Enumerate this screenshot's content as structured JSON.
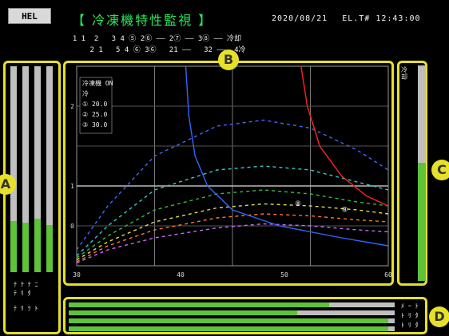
{
  "header": {
    "button_label": "HEL",
    "title": "【 冷凍機特性監視 】",
    "status_text": "2020/08/21 　EL.T# 12:43:00",
    "legend_line1_left": "  1 1  2   3 4 ⑤ 2⑥ —— 2⑦ —— 3⑧ —— 冷却",
    "legend_line1_right": "",
    "legend_line2": "      2 1   5 4 ⑥ 3⑥   21 ——   32 ——  4冷"
  },
  "legend_items": [
    {
      "label": "",
      "color": "#3355ff"
    },
    {
      "label": "",
      "color": "#22bb44"
    },
    {
      "label": "",
      "color": "#dd33ff"
    },
    {
      "label": "",
      "color": "#ff2222"
    },
    {
      "label": "",
      "color": "#eeee55"
    },
    {
      "label": "",
      "color": "#3355ff"
    }
  ],
  "markers": {
    "a": "A",
    "b": "B",
    "c": "C",
    "d": "D"
  },
  "chart_data": {
    "type": "line",
    "x_ticks": [
      "30",
      "",
      "",
      "40",
      "",
      "",
      "50",
      "",
      "",
      "60"
    ],
    "y_ticks": [
      "",
      "2",
      "",
      "1",
      "0",
      ""
    ],
    "inset": [
      "冷凍機 ON",
      "冷",
      "① 20.0",
      "② 25.0",
      "③ 30.0"
    ],
    "series": [
      {
        "color": "#4466ff",
        "points": [
          [
            0,
            0.92
          ],
          [
            0.1,
            0.7
          ],
          [
            0.25,
            0.45
          ],
          [
            0.45,
            0.3
          ],
          [
            0.6,
            0.27
          ],
          [
            0.75,
            0.31
          ],
          [
            0.9,
            0.42
          ],
          [
            1,
            0.52
          ]
        ]
      },
      {
        "color": "#33cccc",
        "points": [
          [
            0,
            0.95
          ],
          [
            0.1,
            0.8
          ],
          [
            0.25,
            0.62
          ],
          [
            0.45,
            0.52
          ],
          [
            0.6,
            0.5
          ],
          [
            0.75,
            0.52
          ],
          [
            0.9,
            0.58
          ],
          [
            1,
            0.62
          ]
        ]
      },
      {
        "color": "#33bb44",
        "points": [
          [
            0,
            0.96
          ],
          [
            0.1,
            0.85
          ],
          [
            0.25,
            0.72
          ],
          [
            0.45,
            0.64
          ],
          [
            0.6,
            0.62
          ],
          [
            0.75,
            0.64
          ],
          [
            0.9,
            0.68
          ],
          [
            1,
            0.7
          ]
        ]
      },
      {
        "color": "#dddd55",
        "points": [
          [
            0,
            0.97
          ],
          [
            0.1,
            0.88
          ],
          [
            0.25,
            0.78
          ],
          [
            0.45,
            0.71
          ],
          [
            0.6,
            0.69
          ],
          [
            0.75,
            0.7
          ],
          [
            0.9,
            0.72
          ],
          [
            1,
            0.74
          ]
        ]
      },
      {
        "color": "#ff7722",
        "points": [
          [
            0,
            0.98
          ],
          [
            0.1,
            0.9
          ],
          [
            0.25,
            0.82
          ],
          [
            0.45,
            0.76
          ],
          [
            0.6,
            0.74
          ],
          [
            0.75,
            0.75
          ],
          [
            0.9,
            0.77
          ],
          [
            1,
            0.78
          ]
        ]
      },
      {
        "color": "#cc66ff",
        "points": [
          [
            0,
            0.985
          ],
          [
            0.1,
            0.92
          ],
          [
            0.25,
            0.86
          ],
          [
            0.45,
            0.81
          ],
          [
            0.6,
            0.79
          ],
          [
            0.75,
            0.8
          ],
          [
            0.9,
            0.82
          ],
          [
            1,
            0.83
          ]
        ]
      },
      {
        "color": "#3366ff",
        "points": [
          [
            0.35,
            0
          ],
          [
            0.36,
            0.25
          ],
          [
            0.38,
            0.45
          ],
          [
            0.42,
            0.6
          ],
          [
            0.5,
            0.72
          ],
          [
            0.65,
            0.8
          ],
          [
            0.85,
            0.86
          ],
          [
            1,
            0.9
          ]
        ]
      },
      {
        "color": "#ff2222",
        "points": [
          [
            0.72,
            0
          ],
          [
            0.74,
            0.2
          ],
          [
            0.78,
            0.4
          ],
          [
            0.85,
            0.55
          ],
          [
            0.93,
            0.65
          ],
          [
            1,
            0.7
          ]
        ]
      }
    ],
    "labels": [
      {
        "text": "⑧",
        "pos": [
          0.7,
          0.7
        ]
      },
      {
        "text": "⑧",
        "pos": [
          0.85,
          0.73
        ]
      }
    ]
  },
  "gauge_a": {
    "levels": [
      0.25,
      0.24,
      0.26,
      0.23
    ],
    "labels": [
      "ﾃ ﾃ ﾃ ﾆ",
      "ﾃ ﾘ ﾀ",
      "ﾃ ﾘ ﾂ ﾄ"
    ]
  },
  "gauge_c": {
    "level": 0.55,
    "label": "冷却"
  },
  "gauge_d": {
    "levels": [
      0.8,
      0.7,
      0.98,
      0.98
    ],
    "labels": [
      "ﾒ ｰ ﾄ",
      "ﾄ ﾘ ﾀ",
      "ﾄ ﾘ ﾀ"
    ]
  }
}
